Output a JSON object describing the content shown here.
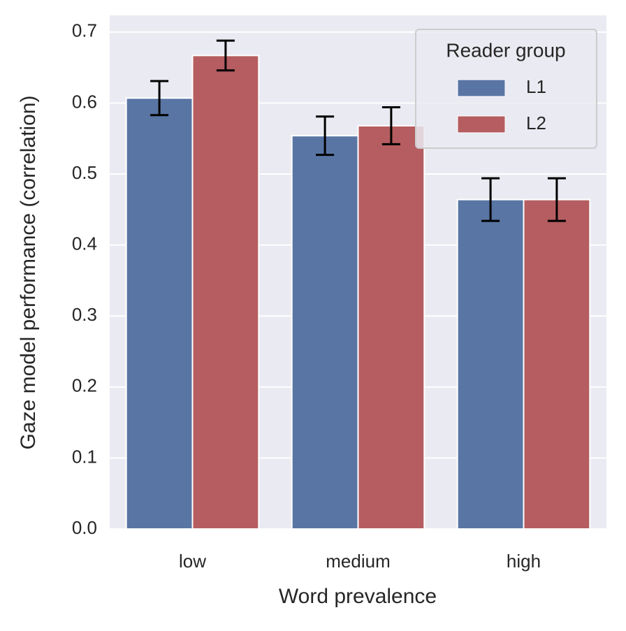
{
  "chart_data": {
    "type": "bar",
    "x_label": "Word prevalence",
    "y_label": "Gaze model performance (correlation)",
    "categories": [
      "low",
      "medium",
      "high"
    ],
    "series": [
      {
        "name": "L1",
        "color": "#5975a4",
        "values": [
          0.607,
          0.554,
          0.464
        ],
        "errors": [
          0.024,
          0.027,
          0.03
        ]
      },
      {
        "name": "L2",
        "color": "#b55d60",
        "values": [
          0.667,
          0.568,
          0.464
        ],
        "errors": [
          0.021,
          0.026,
          0.03
        ]
      }
    ],
    "ylim": [
      0,
      0.7235
    ],
    "yticks": [
      {
        "value": 0,
        "label": "0.0"
      },
      0.1,
      0.2,
      0.3,
      0.4,
      0.5,
      0.6,
      0.7
    ],
    "grid": true,
    "legend": {
      "title": "Reader group",
      "position": "upper right"
    }
  }
}
